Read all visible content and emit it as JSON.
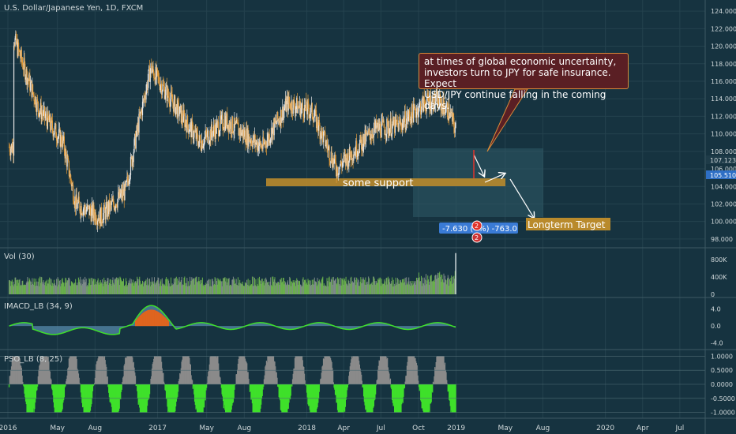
{
  "header": {
    "title": "U.S. Dollar/Japanese Yen, 1D, FXCM"
  },
  "colors": {
    "background": "#163340",
    "grid": "#24424e",
    "candle_up": "#e6e6e6",
    "candle_down": "#e09a3a",
    "support_zone": "#b98a2c",
    "projection_box": "#2f5a66",
    "volume_up": "#6ab04c",
    "volume_down": "#7e8a8a",
    "oscillator_green": "#3fe02a",
    "oscillator_gray": "#8a8a8a",
    "oscillator_orange": "#e0641e"
  },
  "annotations": {
    "note_line1": "at times of global economic uncertainty,",
    "note_line2": "investors turn to JPY for safe insurance. Expect",
    "note_line3": "USD/JPY continue falling in the coming days.",
    "support_label": "some  support",
    "target_label": "Longterm Target",
    "measure_label": "-7.630 (-  %) -763.0",
    "event_badge_1": "2",
    "event_badge_2": "2"
  },
  "price_labels": {
    "current_1": "107.123",
    "current_2": "105.510"
  },
  "chart_data": [
    {
      "type": "line",
      "title": "U.S. Dollar/Japanese Yen, 1D, FXCM",
      "x": [
        "2016-01",
        "2016-03",
        "2016-05",
        "2016-06",
        "2016-08",
        "2016-10",
        "2016-11",
        "2016-12",
        "2017-02",
        "2017-04",
        "2017-06",
        "2017-08",
        "2017-09",
        "2017-11",
        "2018-01",
        "2018-03",
        "2018-04",
        "2018-06",
        "2018-08",
        "2018-10",
        "2018-11",
        "2018-12",
        "2019-01"
      ],
      "y": [
        121.0,
        113.0,
        109.0,
        102.0,
        100.5,
        103.5,
        111.0,
        117.5,
        113.0,
        109.0,
        111.5,
        109.5,
        108.5,
        113.5,
        112.5,
        106.0,
        107.5,
        110.5,
        111.0,
        113.5,
        113.8,
        112.5,
        108.5
      ],
      "ylim": [
        97.0,
        125.0
      ],
      "yticks": [
        "124.000",
        "122.000",
        "120.000",
        "118.000",
        "116.000",
        "114.000",
        "112.000",
        "110.000",
        "108.000",
        "106.000",
        "104.000",
        "102.000",
        "100.000",
        "98.000"
      ],
      "xticks": [
        "2016",
        "May",
        "Aug",
        "2017",
        "May",
        "Aug",
        "2018",
        "Apr",
        "Jul",
        "Oct",
        "2019",
        "May",
        "Aug",
        "2020",
        "Apr",
        "Jul"
      ],
      "support_zone": [
        105.0,
        106.0
      ],
      "target_level": 101.2
    },
    {
      "type": "bar",
      "title": "Vol (30)",
      "yticks": [
        "800K",
        "400K",
        "0"
      ],
      "ylim": [
        0,
        1000000
      ]
    },
    {
      "type": "area",
      "title": "IMACD_LB (34, 9)",
      "yticks": [
        "4.0",
        "0.0",
        "-4.0"
      ],
      "ylim": [
        -5,
        6
      ]
    },
    {
      "type": "bar",
      "title": "PSO_LB (8, 25)",
      "yticks": [
        "1.0000",
        "0.5000",
        "0.0000",
        "-0.5000",
        "-1.0000"
      ],
      "ylim": [
        -1.15,
        1.15
      ]
    }
  ]
}
